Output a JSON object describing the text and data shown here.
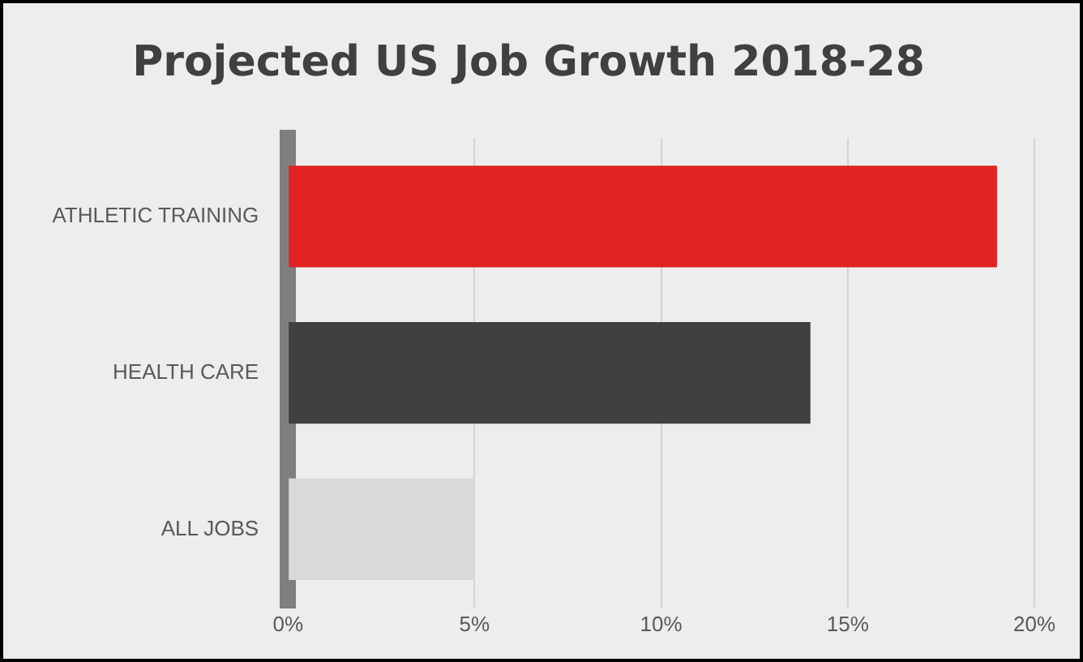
{
  "chart_data": {
    "type": "bar",
    "orientation": "horizontal",
    "title": "Projected US Job Growth 2018-28",
    "categories": [
      "ATHLETIC TRAINING",
      "HEALTH CARE",
      "ALL JOBS"
    ],
    "values": [
      19,
      14,
      5
    ],
    "colors": [
      "#e02222",
      "#404040",
      "#d9d9d9"
    ],
    "xlim": [
      0,
      20
    ],
    "xticks": [
      {
        "value": 0,
        "label": "0%"
      },
      {
        "value": 5,
        "label": "5%"
      },
      {
        "value": 10,
        "label": "10%"
      },
      {
        "value": 15,
        "label": "15%"
      },
      {
        "value": 20,
        "label": "20%"
      }
    ],
    "grid": "x"
  }
}
